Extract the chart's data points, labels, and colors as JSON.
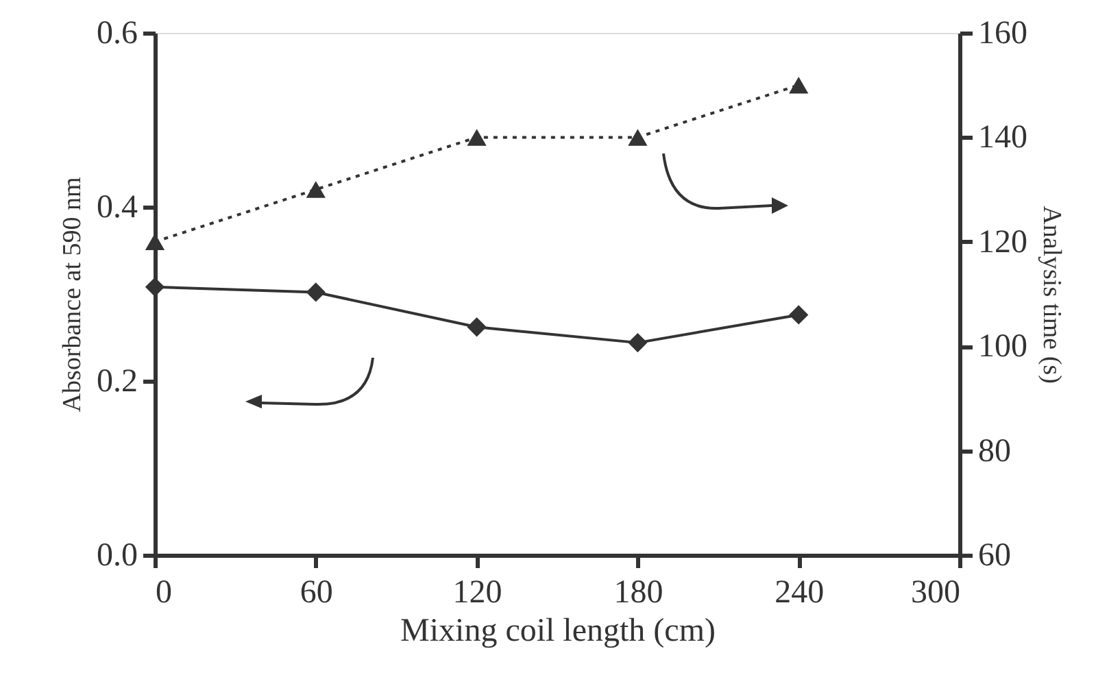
{
  "chart_data": {
    "type": "line",
    "xlabel": "Mixing coil length (cm)",
    "ylabel": "Absorbance at 590 nm",
    "y2label": "Analysis time (s)",
    "x": [
      0,
      60,
      120,
      180,
      240
    ],
    "series": [
      {
        "color": "#333333",
        "values": [
          0.308,
          0.302,
          0.262,
          0.244,
          0.276
        ],
        "marker": "diamond",
        "line_style": "solid"
      },
      {
        "color": "#333333",
        "values": [
          120,
          130,
          140,
          140,
          150
        ],
        "axis": "y2",
        "marker": "triangle",
        "line_style": "dotted"
      }
    ],
    "xlim": [
      0,
      300
    ],
    "xticks": [
      0,
      60,
      120,
      180,
      240,
      300
    ],
    "ylim": [
      0,
      0.6
    ],
    "yticks": [
      {
        "value": 0,
        "label": "0.0"
      },
      0.2,
      0.4,
      0.6
    ],
    "y2lim": [
      60,
      160
    ],
    "y2ticks": [
      60,
      80,
      100,
      120,
      140,
      160
    ],
    "grid": false
  }
}
